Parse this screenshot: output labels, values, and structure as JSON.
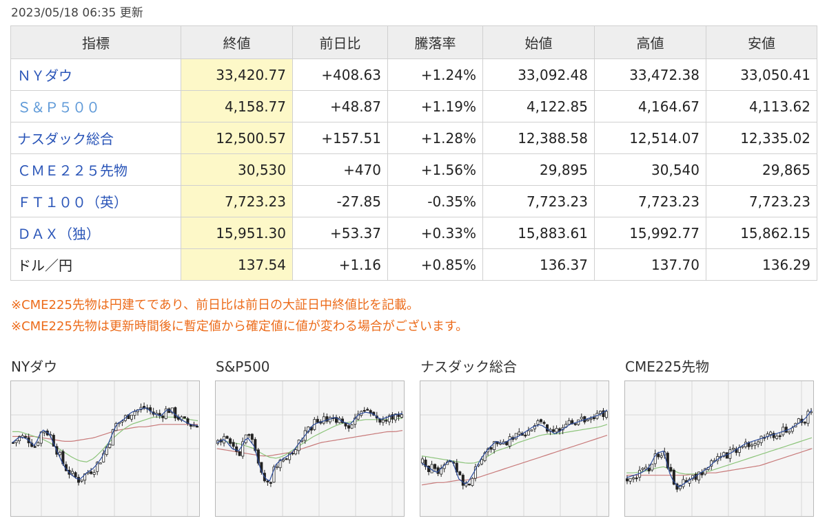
{
  "updated": "2023/05/18 06:35 更新",
  "table": {
    "headers": [
      "指標",
      "終値",
      "前日比",
      "騰落率",
      "始値",
      "高値",
      "安値"
    ],
    "rows": [
      {
        "name": "ＮＹダウ",
        "close": "33,420.77",
        "change": "+408.63",
        "rate": "+1.24%",
        "open": "33,092.48",
        "high": "33,472.38",
        "low": "33,050.41",
        "direction": "up",
        "link": true
      },
      {
        "name": "Ｓ＆Ｐ５００",
        "close": "4,158.77",
        "change": "+48.87",
        "rate": "+1.19%",
        "open": "4,122.85",
        "high": "4,164.67",
        "low": "4,113.62",
        "direction": "up",
        "link": true
      },
      {
        "name": "ナスダック総合",
        "close": "12,500.57",
        "change": "+157.51",
        "rate": "+1.28%",
        "open": "12,388.58",
        "high": "12,514.07",
        "low": "12,335.02",
        "direction": "up",
        "link": true
      },
      {
        "name": "ＣＭＥ２２５先物",
        "close": "30,530",
        "change": "+470",
        "rate": "+1.56%",
        "open": "29,895",
        "high": "30,540",
        "low": "29,865",
        "direction": "up",
        "link": true
      },
      {
        "name": "ＦＴ１００（英）",
        "close": "7,723.23",
        "change": "-27.85",
        "rate": "-0.35%",
        "open": "7,723.23",
        "high": "7,723.23",
        "low": "7,723.23",
        "direction": "down",
        "link": true
      },
      {
        "name": "ＤＡＸ（独）",
        "close": "15,951.30",
        "change": "+53.37",
        "rate": "+0.33%",
        "open": "15,883.61",
        "high": "15,992.77",
        "low": "15,862.15",
        "direction": "up",
        "link": true
      },
      {
        "name": "ドル／円",
        "close": "137.54",
        "change": "+1.16",
        "rate": "+0.85%",
        "open": "136.37",
        "high": "137.70",
        "low": "136.29",
        "direction": "up",
        "link": false
      }
    ]
  },
  "notes": [
    "※CME225先物は円建てであり、前日比は前日の大証日中終値比を記載。",
    "※CME225先物は更新時間後に暫定値から確定値に値が変わる場合がございます。"
  ],
  "colors": {
    "up": "#e0202b",
    "down": "#2a55b8",
    "link": "#2a55b8",
    "note": "#ec6b1a",
    "close_bg": "#fdf8c8",
    "ma_short": "#2a4a9a",
    "ma_mid": "#8cc47a",
    "ma_long": "#c87a7a"
  },
  "charts": [
    {
      "title": "NYダウ",
      "chart_data": {
        "type": "candlestick",
        "title": "NYダウ",
        "trend": [
          0.55,
          0.6,
          0.58,
          0.52,
          0.66,
          0.62,
          0.48,
          0.35,
          0.28,
          0.24,
          0.3,
          0.34,
          0.42,
          0.55,
          0.7,
          0.74,
          0.8,
          0.82,
          0.84,
          0.79,
          0.77,
          0.83,
          0.78,
          0.73,
          0.7,
          0.69
        ],
        "ma_mid": [
          0.64,
          0.64,
          0.62,
          0.6,
          0.58,
          0.55,
          0.51,
          0.47,
          0.43,
          0.4,
          0.39,
          0.42,
          0.48,
          0.55,
          0.61,
          0.66,
          0.7,
          0.72,
          0.74,
          0.76,
          0.76,
          0.76,
          0.76,
          0.75,
          0.74,
          0.73
        ],
        "ma_long": [
          0.6,
          0.6,
          0.6,
          0.6,
          0.59,
          0.58,
          0.57,
          0.56,
          0.56,
          0.57,
          0.58,
          0.59,
          0.61,
          0.63,
          0.65,
          0.66,
          0.67,
          0.68,
          0.68,
          0.69,
          0.7,
          0.7,
          0.7,
          0.7,
          0.7,
          0.7
        ]
      }
    },
    {
      "title": "S&P500",
      "chart_data": {
        "type": "candlestick",
        "title": "S&P500",
        "trend": [
          0.55,
          0.58,
          0.5,
          0.48,
          0.6,
          0.52,
          0.3,
          0.22,
          0.38,
          0.42,
          0.46,
          0.54,
          0.62,
          0.7,
          0.72,
          0.74,
          0.76,
          0.72,
          0.7,
          0.78,
          0.8,
          0.79,
          0.74,
          0.76,
          0.78,
          0.79
        ],
        "ma_mid": [
          0.56,
          0.56,
          0.55,
          0.54,
          0.52,
          0.5,
          0.46,
          0.43,
          0.42,
          0.44,
          0.48,
          0.52,
          0.56,
          0.6,
          0.63,
          0.66,
          0.69,
          0.71,
          0.72,
          0.73,
          0.74,
          0.74,
          0.74,
          0.74,
          0.75,
          0.75
        ],
        "ma_long": [
          0.5,
          0.49,
          0.48,
          0.47,
          0.46,
          0.45,
          0.44,
          0.44,
          0.45,
          0.46,
          0.47,
          0.49,
          0.51,
          0.53,
          0.55,
          0.56,
          0.57,
          0.58,
          0.59,
          0.6,
          0.61,
          0.62,
          0.63,
          0.64,
          0.64,
          0.65
        ]
      }
    },
    {
      "title": "ナスダック総合",
      "chart_data": {
        "type": "candlestick",
        "title": "ナスダック総合",
        "trend": [
          0.38,
          0.34,
          0.3,
          0.36,
          0.42,
          0.25,
          0.2,
          0.3,
          0.42,
          0.5,
          0.56,
          0.54,
          0.58,
          0.6,
          0.64,
          0.68,
          0.7,
          0.66,
          0.62,
          0.66,
          0.7,
          0.72,
          0.74,
          0.76,
          0.78,
          0.82
        ],
        "ma_mid": [
          0.44,
          0.43,
          0.42,
          0.41,
          0.4,
          0.39,
          0.38,
          0.38,
          0.4,
          0.44,
          0.48,
          0.5,
          0.52,
          0.55,
          0.57,
          0.59,
          0.61,
          0.62,
          0.62,
          0.63,
          0.64,
          0.65,
          0.66,
          0.67,
          0.68,
          0.7
        ],
        "ma_long": [
          0.2,
          0.21,
          0.22,
          0.22,
          0.23,
          0.24,
          0.24,
          0.25,
          0.27,
          0.29,
          0.31,
          0.33,
          0.35,
          0.37,
          0.39,
          0.41,
          0.43,
          0.45,
          0.47,
          0.49,
          0.51,
          0.53,
          0.55,
          0.57,
          0.59,
          0.61
        ]
      }
    },
    {
      "title": "CME225先物",
      "chart_data": {
        "type": "candlestick",
        "title": "CME225先物",
        "trend": [
          0.26,
          0.28,
          0.3,
          0.34,
          0.46,
          0.48,
          0.26,
          0.18,
          0.22,
          0.26,
          0.3,
          0.34,
          0.4,
          0.44,
          0.46,
          0.5,
          0.54,
          0.56,
          0.58,
          0.6,
          0.62,
          0.64,
          0.66,
          0.7,
          0.74,
          0.82
        ],
        "ma_mid": [
          0.3,
          0.3,
          0.31,
          0.32,
          0.34,
          0.35,
          0.33,
          0.3,
          0.29,
          0.29,
          0.3,
          0.31,
          0.33,
          0.35,
          0.37,
          0.39,
          0.41,
          0.43,
          0.45,
          0.47,
          0.49,
          0.51,
          0.53,
          0.55,
          0.57,
          0.59
        ],
        "ma_long": [
          0.28,
          0.28,
          0.28,
          0.28,
          0.28,
          0.28,
          0.28,
          0.28,
          0.28,
          0.29,
          0.29,
          0.3,
          0.3,
          0.31,
          0.32,
          0.33,
          0.34,
          0.35,
          0.36,
          0.38,
          0.4,
          0.42,
          0.44,
          0.46,
          0.48,
          0.5
        ]
      }
    }
  ]
}
